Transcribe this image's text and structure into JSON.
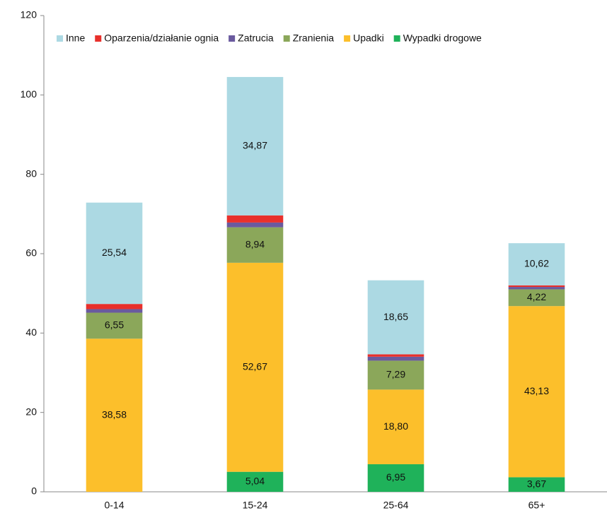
{
  "chart_data": {
    "type": "stacked_bar",
    "categories": [
      "0-14",
      "15-24",
      "25-64",
      "65+"
    ],
    "series": [
      {
        "name": "Wypadki drogowe",
        "color": "#1fb25a",
        "values": [
          0,
          5.04,
          6.95,
          3.67
        ],
        "value_labels": [
          null,
          "5,04",
          "6,95",
          "3,67"
        ]
      },
      {
        "name": "Upadki",
        "color": "#fcbf2b",
        "values": [
          38.58,
          52.67,
          18.8,
          43.13
        ],
        "value_labels": [
          "38,58",
          "52,67",
          "18,80",
          "43,13"
        ]
      },
      {
        "name": "Zranienia",
        "color": "#8ba75a",
        "values": [
          6.55,
          8.94,
          7.29,
          4.22
        ],
        "value_labels": [
          "6,55",
          "8,94",
          "7,29",
          "4,22"
        ]
      },
      {
        "name": "Zatrucia",
        "color": "#6a5a9e",
        "values": [
          0.9,
          1.2,
          1.0,
          0.6
        ]
      },
      {
        "name": "Oparzenia/działanie ognia",
        "color": "#e8302b",
        "values": [
          1.3,
          1.8,
          0.6,
          0.4
        ]
      },
      {
        "name": "Inne",
        "color": "#acd9e3",
        "values": [
          25.54,
          34.87,
          18.65,
          10.62
        ],
        "value_labels": [
          "25,54",
          "34,87",
          "18,65",
          "10,62"
        ]
      }
    ],
    "ylim": [
      0,
      120
    ],
    "yticks": [
      0,
      20,
      40,
      60,
      80,
      100,
      120
    ],
    "grid": false,
    "legend": "top"
  }
}
